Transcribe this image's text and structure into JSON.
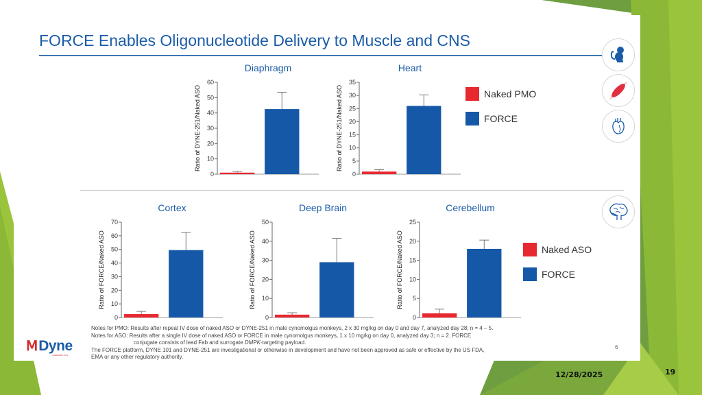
{
  "slide": {
    "title": "FORCE Enables Oligonucleotide Delivery to Muscle and CNS",
    "inner_page_number": "6",
    "footer_date": "12/28/2025",
    "footer_page_number": "19",
    "logo_text": "Dyne",
    "logo_subtext": "THERAPEUTICS"
  },
  "colors": {
    "title_blue": "#1a5ca8",
    "naked_red": "#e8282f",
    "force_blue": "#1558a8",
    "green_light": "#9ac43c",
    "green_dark": "#6e9e3f"
  },
  "legends": {
    "top": [
      {
        "label": "Naked PMO",
        "color": "#e8282f"
      },
      {
        "label": "FORCE",
        "color": "#1558a8"
      }
    ],
    "bottom": [
      {
        "label": "Naked ASO",
        "color": "#e8282f"
      },
      {
        "label": "FORCE",
        "color": "#1558a8"
      }
    ]
  },
  "icons": {
    "monkey": "monkey-icon",
    "muscle": "muscle-icon",
    "heart": "heart-icon",
    "brain": "brain-icon"
  },
  "notes": {
    "line1": "Notes for PMO: Results after repeat IV dose of naked ASO or DYNE-251 in male cynomolgus monkeys, 2 x 30 mg/kg on day 0 and day 7, analyzed day 28; n = 4 – 5.",
    "line2": "Notes for ASO: Results after a single IV dose of naked ASO or FORCE in male cynomolgus monkeys, 1 x 10 mg/kg on day 0, analyzed day 3; n = 2. FORCE",
    "line3_pre": "conjugate consists of lead Fab and surrogate ",
    "line3_italic": "DMPK",
    "line3_post": "-targeting payload.",
    "line4": "The FORCE platform, DYNE 101 and DYNE-251 are investigational or otherwise in development and have not been approved as safe or effective by the US FDA,",
    "line5": "EMA or any other regulatory authority."
  },
  "chart_data": [
    {
      "type": "bar",
      "title": "Diaphragm",
      "ylabel": "Ratio of DYNE-251/Naked ASO",
      "xlabel": "",
      "categories": [
        "Naked PMO",
        "FORCE"
      ],
      "values": [
        1,
        42.5
      ],
      "error": [
        0.8,
        11
      ],
      "ylim": [
        0,
        60
      ],
      "yticks": [
        0,
        10,
        20,
        30,
        40,
        50,
        60
      ],
      "colors": [
        "#e8282f",
        "#1558a8"
      ],
      "legend": "right"
    },
    {
      "type": "bar",
      "title": "Heart",
      "ylabel": "Ratio of DYNE-251/Naked ASO",
      "xlabel": "",
      "categories": [
        "Naked PMO",
        "FORCE"
      ],
      "values": [
        1,
        26
      ],
      "error": [
        0.7,
        4.2
      ],
      "ylim": [
        0,
        35
      ],
      "yticks": [
        0,
        5,
        10,
        15,
        20,
        25,
        30,
        35
      ],
      "colors": [
        "#e8282f",
        "#1558a8"
      ],
      "legend": "right"
    },
    {
      "type": "bar",
      "title": "Cortex",
      "ylabel": "Ratio of FORCE/Naked ASO",
      "xlabel": "",
      "categories": [
        "Naked ASO",
        "FORCE"
      ],
      "values": [
        2.5,
        49.5
      ],
      "error": [
        2,
        13
      ],
      "ylim": [
        0,
        70
      ],
      "yticks": [
        0,
        10,
        20,
        30,
        40,
        50,
        60,
        70
      ],
      "colors": [
        "#e8282f",
        "#1558a8"
      ],
      "legend": "right"
    },
    {
      "type": "bar",
      "title": "Deep Brain",
      "ylabel": "Ratio of FORCE/Naked ASO",
      "xlabel": "",
      "categories": [
        "Naked ASO",
        "FORCE"
      ],
      "values": [
        1.5,
        29
      ],
      "error": [
        1,
        12.5
      ],
      "ylim": [
        0,
        50
      ],
      "yticks": [
        0,
        10,
        20,
        30,
        40,
        50
      ],
      "colors": [
        "#e8282f",
        "#1558a8"
      ],
      "legend": "right"
    },
    {
      "type": "bar",
      "title": "Cerebellum",
      "ylabel": "Ratio of FORCE/Naked ASO",
      "xlabel": "",
      "categories": [
        "Naked ASO",
        "FORCE"
      ],
      "values": [
        1.1,
        18
      ],
      "error": [
        1.1,
        2.3
      ],
      "ylim": [
        0,
        25
      ],
      "yticks": [
        0,
        5,
        10,
        15,
        20,
        25
      ],
      "colors": [
        "#e8282f",
        "#1558a8"
      ],
      "legend": "right"
    }
  ]
}
